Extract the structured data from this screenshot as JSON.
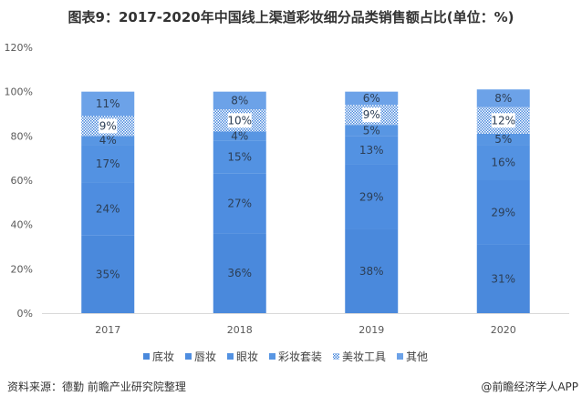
{
  "chart_data": {
    "type": "bar",
    "stacked": true,
    "title": "图表9：2017-2020年中国线上渠道彩妆细分品类销售额占比(单位：%)",
    "xlabel": "",
    "ylabel": "",
    "ylim": [
      0,
      120
    ],
    "yticks": [
      "0%",
      "20%",
      "40%",
      "60%",
      "80%",
      "100%",
      "120%"
    ],
    "categories": [
      "2017",
      "2018",
      "2019",
      "2020"
    ],
    "series": [
      {
        "name": "底妆",
        "values": [
          35,
          36,
          38,
          31
        ],
        "color": "#4a89dc"
      },
      {
        "name": "唇妆",
        "values": [
          24,
          27,
          29,
          29
        ],
        "color": "#4e8de0"
      },
      {
        "name": "眼妆",
        "values": [
          17,
          15,
          13,
          16
        ],
        "color": "#5392e2"
      },
      {
        "name": "彩妆套装",
        "values": [
          4,
          4,
          5,
          5
        ],
        "color": "#5896e3"
      },
      {
        "name": "美妆工具",
        "values": [
          9,
          10,
          9,
          12
        ],
        "color": "#4a89dc",
        "pattern": true
      },
      {
        "name": "其他",
        "values": [
          11,
          8,
          6,
          8
        ],
        "color": "#6ca2e8"
      }
    ],
    "legend_position": "bottom",
    "grid": false
  },
  "footer": {
    "source": "资料来源：德勤 前瞻产业研究院整理",
    "credit": "@前瞻经济学人APP"
  }
}
